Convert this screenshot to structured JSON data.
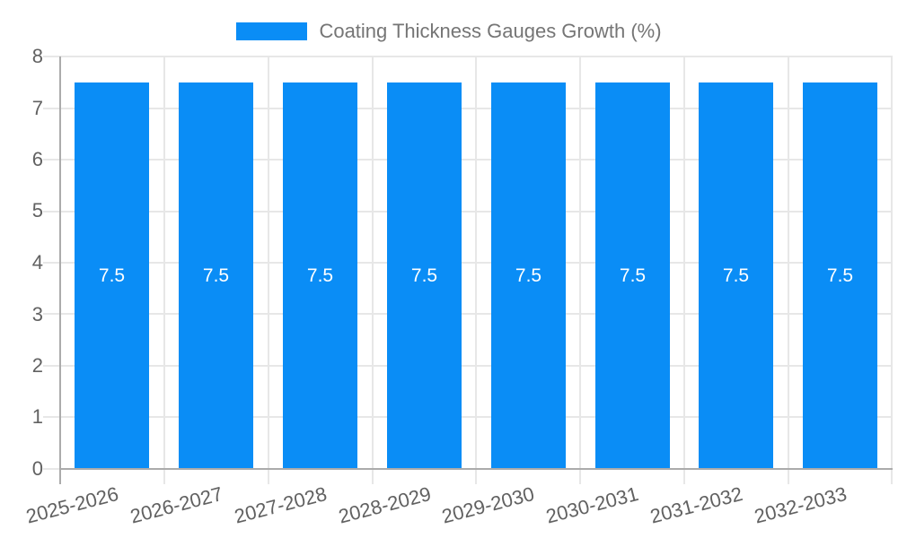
{
  "colors": {
    "background": "#ffffff",
    "bar": "#0a8df6",
    "grid": "#e7e7e7",
    "axis": "#ababab",
    "tick_text": "#616161",
    "legend_text": "#757575",
    "bar_label": "#ffffff"
  },
  "legend": {
    "label": "Coating Thickness Gauges Growth (%)"
  },
  "chart_data": {
    "type": "bar",
    "title": "Coating Thickness Gauges Growth (%)",
    "xlabel": "",
    "ylabel": "",
    "ylim": [
      0,
      8
    ],
    "grid": true,
    "legend_position": "top",
    "bar_label_position": "center-inside",
    "categories": [
      "2025-2026",
      "2026-2027",
      "2027-2028",
      "2028-2029",
      "2029-2030",
      "2030-2031",
      "2031-2032",
      "2032-2033"
    ],
    "values": [
      7.5,
      7.5,
      7.5,
      7.5,
      7.5,
      7.5,
      7.5,
      7.5
    ],
    "yticks": [
      0,
      1,
      2,
      3,
      4,
      5,
      6,
      7,
      8
    ]
  }
}
